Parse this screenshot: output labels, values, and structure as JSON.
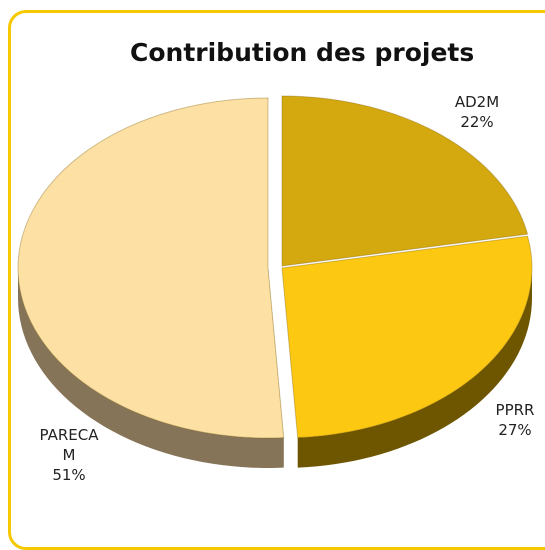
{
  "chart_data": {
    "type": "pie",
    "title": "Contribution des projets",
    "categories": [
      "AD2M",
      "PPRR",
      "PARECAM"
    ],
    "values": [
      22,
      27,
      51
    ],
    "value_labels": [
      "22%",
      "27%",
      "51%"
    ],
    "colors": [
      "#d4a90f",
      "#fcc812",
      "#fde1a4"
    ],
    "side_colors": [
      "#7a6108",
      "#6e5600",
      "#857458"
    ]
  }
}
